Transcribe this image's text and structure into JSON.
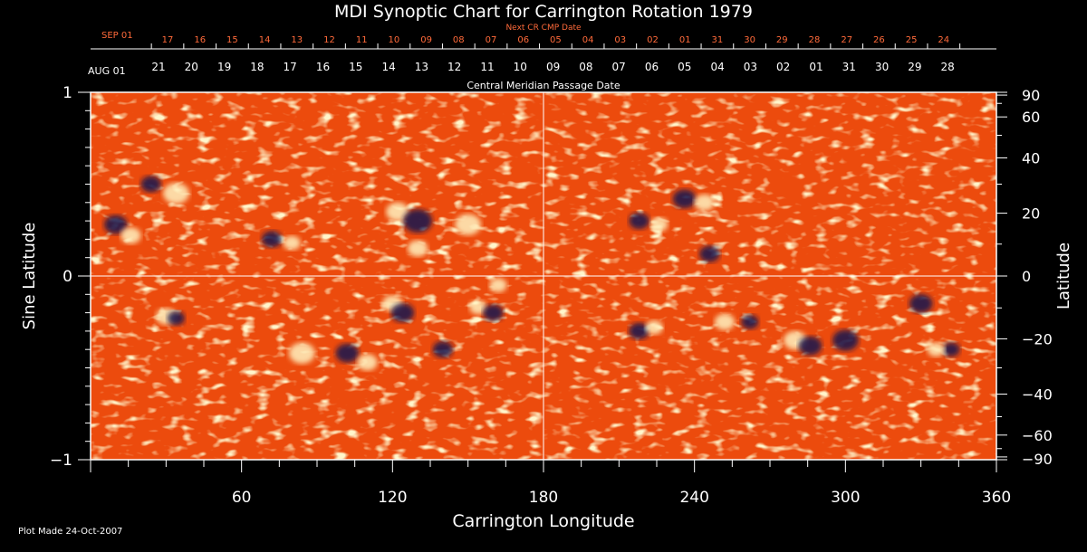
{
  "chart_data": {
    "type": "heatmap",
    "title": "MDI Synoptic Chart for Carrington Rotation 1979",
    "top_axis_label": "Next CR CMP Date",
    "mid_axis_label": "Central Meridian Passage Date",
    "xlabel": "Carrington Longitude",
    "ylabel_left": "Sine Latitude",
    "ylabel_right": "Latitude",
    "footer": "Plot Made 24-Oct-2007",
    "xlim": [
      0,
      360
    ],
    "ylim": [
      -1,
      1
    ],
    "x_ticks": [
      "60",
      "120",
      "180",
      "240",
      "300",
      "360"
    ],
    "x_tick_values": [
      60,
      120,
      180,
      240,
      300,
      360
    ],
    "y_left_ticks": [
      "1",
      "0",
      "−1"
    ],
    "y_left_values": [
      1,
      0,
      -1
    ],
    "y_right_ticks": [
      "90",
      "60",
      "40",
      "20",
      "0",
      "−20",
      "−40",
      "−60",
      "−90"
    ],
    "y_right_values": [
      90,
      60,
      40,
      20,
      0,
      -20,
      -40,
      -60,
      -90
    ],
    "top_date_start": "SEP 01",
    "top_dates": [
      "17",
      "16",
      "15",
      "14",
      "13",
      "12",
      "11",
      "10",
      "09",
      "08",
      "07",
      "06",
      "05",
      "04",
      "03",
      "02",
      "01",
      "31",
      "30",
      "29",
      "28",
      "27",
      "26",
      "25",
      "24"
    ],
    "mid_date_start": "AUG 01",
    "mid_dates": [
      "21",
      "20",
      "19",
      "18",
      "17",
      "16",
      "15",
      "14",
      "13",
      "12",
      "11",
      "10",
      "09",
      "08",
      "07",
      "06",
      "05",
      "04",
      "03",
      "02",
      "01",
      "31",
      "30",
      "29",
      "28"
    ],
    "crosshair": {
      "longitude": 180,
      "sine_latitude": 0
    },
    "colors": {
      "background": "#000000",
      "field": "#ff5a10",
      "positive": "#fff2c0",
      "negative": "#141850",
      "top_dates": "#ff6a3a"
    },
    "regions": [
      {
        "lon": 10,
        "sinlat": 0.28,
        "polarity": "negative",
        "r": 8
      },
      {
        "lon": 16,
        "sinlat": 0.22,
        "polarity": "positive",
        "r": 7
      },
      {
        "lon": 24,
        "sinlat": 0.5,
        "polarity": "negative",
        "r": 7
      },
      {
        "lon": 34,
        "sinlat": 0.45,
        "polarity": "positive",
        "r": 9
      },
      {
        "lon": 72,
        "sinlat": 0.2,
        "polarity": "negative",
        "r": 7
      },
      {
        "lon": 80,
        "sinlat": 0.18,
        "polarity": "positive",
        "r": 6
      },
      {
        "lon": 122,
        "sinlat": 0.35,
        "polarity": "positive",
        "r": 8
      },
      {
        "lon": 130,
        "sinlat": 0.3,
        "polarity": "negative",
        "r": 10
      },
      {
        "lon": 150,
        "sinlat": 0.28,
        "polarity": "positive",
        "r": 9
      },
      {
        "lon": 130,
        "sinlat": 0.15,
        "polarity": "positive",
        "r": 7
      },
      {
        "lon": 218,
        "sinlat": 0.3,
        "polarity": "negative",
        "r": 7
      },
      {
        "lon": 226,
        "sinlat": 0.28,
        "polarity": "positive",
        "r": 6
      },
      {
        "lon": 236,
        "sinlat": 0.42,
        "polarity": "negative",
        "r": 8
      },
      {
        "lon": 244,
        "sinlat": 0.4,
        "polarity": "positive",
        "r": 7
      },
      {
        "lon": 246,
        "sinlat": 0.12,
        "polarity": "negative",
        "r": 7
      },
      {
        "lon": 30,
        "sinlat": -0.22,
        "polarity": "positive",
        "r": 7
      },
      {
        "lon": 34,
        "sinlat": -0.23,
        "polarity": "negative",
        "r": 6
      },
      {
        "lon": 120,
        "sinlat": -0.15,
        "polarity": "positive",
        "r": 7
      },
      {
        "lon": 124,
        "sinlat": -0.2,
        "polarity": "negative",
        "r": 8
      },
      {
        "lon": 154,
        "sinlat": -0.17,
        "polarity": "positive",
        "r": 6
      },
      {
        "lon": 160,
        "sinlat": -0.2,
        "polarity": "negative",
        "r": 7
      },
      {
        "lon": 162,
        "sinlat": -0.05,
        "polarity": "positive",
        "r": 6
      },
      {
        "lon": 84,
        "sinlat": -0.42,
        "polarity": "positive",
        "r": 9
      },
      {
        "lon": 102,
        "sinlat": -0.42,
        "polarity": "negative",
        "r": 8
      },
      {
        "lon": 110,
        "sinlat": -0.47,
        "polarity": "positive",
        "r": 7
      },
      {
        "lon": 140,
        "sinlat": -0.4,
        "polarity": "negative",
        "r": 7
      },
      {
        "lon": 218,
        "sinlat": -0.3,
        "polarity": "negative",
        "r": 7
      },
      {
        "lon": 224,
        "sinlat": -0.28,
        "polarity": "positive",
        "r": 6
      },
      {
        "lon": 252,
        "sinlat": -0.25,
        "polarity": "positive",
        "r": 7
      },
      {
        "lon": 262,
        "sinlat": -0.25,
        "polarity": "negative",
        "r": 6
      },
      {
        "lon": 280,
        "sinlat": -0.35,
        "polarity": "positive",
        "r": 8
      },
      {
        "lon": 286,
        "sinlat": -0.38,
        "polarity": "negative",
        "r": 8
      },
      {
        "lon": 300,
        "sinlat": -0.35,
        "polarity": "negative",
        "r": 9
      },
      {
        "lon": 330,
        "sinlat": -0.15,
        "polarity": "negative",
        "r": 8
      },
      {
        "lon": 342,
        "sinlat": -0.4,
        "polarity": "negative",
        "r": 6
      },
      {
        "lon": 336,
        "sinlat": -0.4,
        "polarity": "positive",
        "r": 6
      }
    ]
  }
}
